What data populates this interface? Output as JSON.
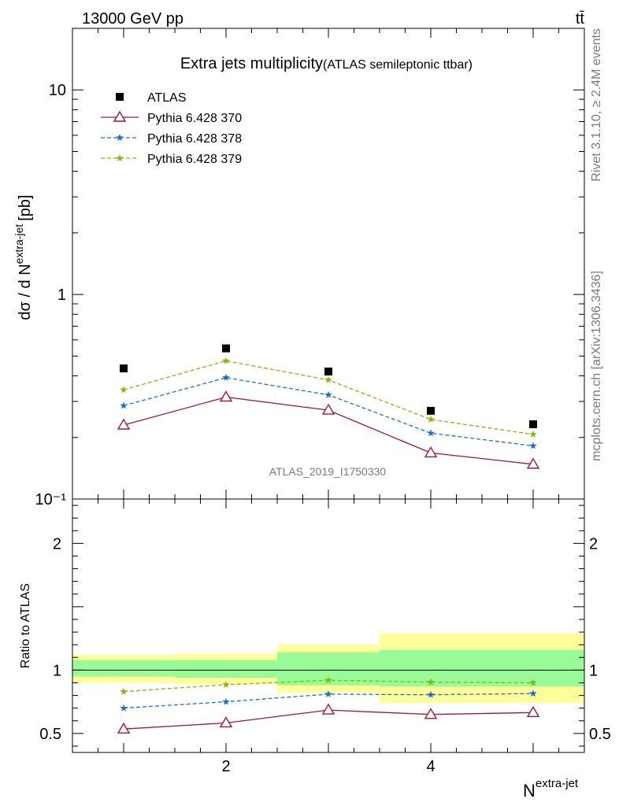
{
  "header": {
    "left": "13000 GeV pp",
    "right": "tt̄"
  },
  "side_text": {
    "top": "Rivet 3.1.10, ≥ 2.4M events",
    "bottom": "mcplots.cern.ch [arXiv:1306.3436]"
  },
  "watermark": "ATLAS_2019_I1750330",
  "chart_data": [
    {
      "type": "scatter",
      "scale": "log",
      "title": "Extra jets multiplicity",
      "subtitle": "(ATLAS semileptonic ttbar)",
      "ylabel_main": "dσ / d N",
      "ylabel_sup": "extra-jet",
      "ylabel_unit": "[pb]",
      "ylim": [
        0.1,
        20
      ],
      "xlim": [
        0.5,
        5.5
      ],
      "x_ticks": [
        2,
        4
      ],
      "y_ticks": [
        {
          "value": 10,
          "label": "10"
        },
        {
          "value": 1,
          "label": "1"
        },
        {
          "value": 0.1,
          "label": "10⁻¹"
        }
      ],
      "x": [
        1,
        2,
        3,
        4,
        5
      ],
      "series": [
        {
          "name": "ATLAS",
          "style": "data",
          "color": "#000000",
          "marker": "square",
          "values": [
            0.435,
            0.545,
            0.42,
            0.27,
            0.232
          ]
        },
        {
          "name": "Pythia 6.428 370",
          "style": "solid",
          "color": "#9b1b30",
          "marker": "triangle-open",
          "values": [
            0.23,
            0.315,
            0.272,
            0.168,
            0.148
          ]
        },
        {
          "name": "Pythia 6.428 378",
          "style": "dashed",
          "color": "#1f6fd1",
          "marker": "star",
          "values": [
            0.286,
            0.392,
            0.323,
            0.21,
            0.182
          ]
        },
        {
          "name": "Pythia 6.428 379",
          "style": "dashed",
          "color": "#82b810",
          "marker": "star",
          "values": [
            0.342,
            0.474,
            0.382,
            0.245,
            0.207
          ]
        }
      ],
      "legend_position": "top-left"
    },
    {
      "type": "line",
      "ylabel": "Ratio to ATLAS",
      "xlabel_main": "N",
      "xlabel_sup": "extra-jet",
      "ylim": [
        0.35,
        2.35
      ],
      "xlim": [
        0.5,
        5.5
      ],
      "x_ticks": [
        2,
        4
      ],
      "y_ticks": [
        {
          "value": 2,
          "label": "2"
        },
        {
          "value": 1,
          "label": "1"
        },
        {
          "value": 0.5,
          "label": "0.5"
        }
      ],
      "bands": [
        {
          "x0": 0.5,
          "x1": 1.5,
          "yellow": [
            0.9,
            1.12
          ],
          "green": [
            0.95,
            1.08
          ]
        },
        {
          "x0": 1.5,
          "x1": 2.5,
          "yellow": [
            0.89,
            1.13
          ],
          "green": [
            0.94,
            1.08
          ]
        },
        {
          "x0": 2.5,
          "x1": 3.5,
          "yellow": [
            0.82,
            1.2
          ],
          "green": [
            0.88,
            1.14
          ]
        },
        {
          "x0": 3.5,
          "x1": 5.5,
          "yellow": [
            0.74,
            1.29
          ],
          "green": [
            0.87,
            1.16
          ]
        }
      ],
      "x": [
        1,
        2,
        3,
        4,
        5
      ],
      "series": [
        {
          "name": "Pythia 6.428 370",
          "style": "solid",
          "color": "#9b1b30",
          "marker": "triangle-open",
          "values": [
            0.535,
            0.583,
            0.685,
            0.65,
            0.665
          ]
        },
        {
          "name": "Pythia 6.428 378",
          "style": "dashed",
          "color": "#1f6fd1",
          "marker": "star",
          "values": [
            0.7,
            0.75,
            0.81,
            0.805,
            0.815
          ]
        },
        {
          "name": "Pythia 6.428 379",
          "style": "dashed",
          "color": "#82b810",
          "marker": "star",
          "values": [
            0.83,
            0.885,
            0.92,
            0.905,
            0.9
          ]
        }
      ],
      "colors": {
        "band_yellow": "#ffff99",
        "band_green": "#98fb98",
        "reference_line": "#000000"
      }
    }
  ]
}
